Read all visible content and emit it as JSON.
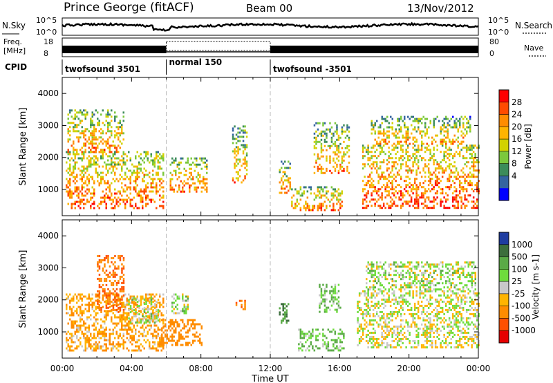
{
  "header": {
    "station": "Prince George (fitACF)",
    "beam": "Beam 00",
    "date": "13/Nov/2012"
  },
  "status_panel": {
    "nsky_label": "N.Sky",
    "nsky_ticks": [
      "10^5",
      "10^0"
    ],
    "nsearch_label": "N.Search",
    "freq_label_1": "Freq.",
    "freq_label_2": "[MHz]",
    "freq_ticks": [
      "18",
      "8"
    ],
    "nave_label": "Nave",
    "nave_ticks": [
      "80",
      "0"
    ],
    "cpid_label": "CPID",
    "cpid_segments": [
      {
        "label": "twofsound 3501",
        "start_hour": 0,
        "end_hour": 6
      },
      {
        "label": "normal 150",
        "start_hour": 6,
        "end_hour": 12
      },
      {
        "label": "twofsound -3501",
        "start_hour": 12,
        "end_hour": 24
      }
    ]
  },
  "chart_data": [
    {
      "type": "heatmap",
      "quantity": "Power",
      "ylabel": "Slant Range [km]",
      "ylim": [
        180,
        4500
      ],
      "yticks": [
        1000,
        2000,
        3000,
        4000
      ],
      "xlim": [
        0,
        24
      ],
      "colorbar": {
        "label": "Power [dB]",
        "ticks": [
          "28",
          "24",
          "20",
          "16",
          "12",
          "8",
          "4"
        ],
        "colors": [
          "#ff0000",
          "#ff4b00",
          "#ff8c00",
          "#ffb400",
          "#d2d200",
          "#7cc83c",
          "#3c8c5a",
          "#3464a0",
          "#0000ff"
        ]
      },
      "regions": [
        {
          "t0": 0.2,
          "t1": 5.8,
          "r0": 400,
          "r1": 2200,
          "level": 0.55
        },
        {
          "t0": 0.3,
          "t1": 3.5,
          "r0": 2200,
          "r1": 3500,
          "level": 0.35
        },
        {
          "t0": 6.2,
          "t1": 8.3,
          "r0": 900,
          "r1": 2000,
          "level": 0.45
        },
        {
          "t0": 9.8,
          "t1": 10.6,
          "r0": 1200,
          "r1": 3000,
          "level": 0.3
        },
        {
          "t0": 12.5,
          "t1": 13.1,
          "r0": 900,
          "r1": 1900,
          "level": 0.35
        },
        {
          "t0": 13.2,
          "t1": 16.1,
          "r0": 350,
          "r1": 1100,
          "level": 0.45
        },
        {
          "t0": 14.5,
          "t1": 16.5,
          "r0": 1500,
          "r1": 3100,
          "level": 0.35
        },
        {
          "t0": 17.3,
          "t1": 24,
          "r0": 400,
          "r1": 2400,
          "level": 0.65
        },
        {
          "t0": 17.8,
          "t1": 23.5,
          "r0": 2400,
          "r1": 3300,
          "level": 0.3
        }
      ]
    },
    {
      "type": "heatmap",
      "quantity": "Velocity",
      "ylabel": "Slant Range [km]",
      "ylim": [
        180,
        4500
      ],
      "yticks": [
        1000,
        2000,
        3000,
        4000
      ],
      "xlim": [
        0,
        24
      ],
      "xlabel": "Time UT",
      "xticks": [
        "00:00",
        "04:00",
        "08:00",
        "12:00",
        "16:00",
        "20:00",
        "00:00"
      ],
      "colorbar": {
        "label": "Velocity [m s-1]",
        "ticks": [
          "1000",
          "500",
          "100",
          "25",
          "-25",
          "-100",
          "-500",
          "-1000"
        ],
        "colors": [
          "#1e3ca0",
          "#3c6e3c",
          "#5aaa46",
          "#6edc3c",
          "#c8c8c8",
          "#ffb400",
          "#ff8c00",
          "#ff5000",
          "#e60000"
        ]
      },
      "regions": [
        {
          "t0": 0.2,
          "t1": 5.8,
          "r0": 400,
          "r1": 2200,
          "velocity": -100
        },
        {
          "t0": 2.0,
          "t1": 3.5,
          "r0": 1600,
          "r1": 3400,
          "velocity": -500
        },
        {
          "t0": 3.8,
          "t1": 5.5,
          "r0": 1300,
          "r1": 2100,
          "velocity": 25
        },
        {
          "t0": 5.7,
          "t1": 8.0,
          "r0": 600,
          "r1": 1400,
          "velocity": -300
        },
        {
          "t0": 6.3,
          "t1": 7.2,
          "r0": 1600,
          "r1": 2200,
          "velocity": 25
        },
        {
          "t0": 10.0,
          "t1": 10.5,
          "r0": 1700,
          "r1": 2000,
          "velocity": -500
        },
        {
          "t0": 12.5,
          "t1": 13.0,
          "r0": 1300,
          "r1": 1900,
          "velocity": 500
        },
        {
          "t0": 13.5,
          "t1": 16.2,
          "r0": 400,
          "r1": 1100,
          "velocity": 100
        },
        {
          "t0": 14.8,
          "t1": 16.0,
          "r0": 1600,
          "r1": 2500,
          "velocity": 100
        },
        {
          "t0": 17.0,
          "t1": 24,
          "r0": 500,
          "r1": 2300,
          "velocity": 0
        },
        {
          "t0": 17.5,
          "t1": 23.8,
          "r0": 2300,
          "r1": 3200,
          "velocity": 25
        }
      ]
    }
  ]
}
